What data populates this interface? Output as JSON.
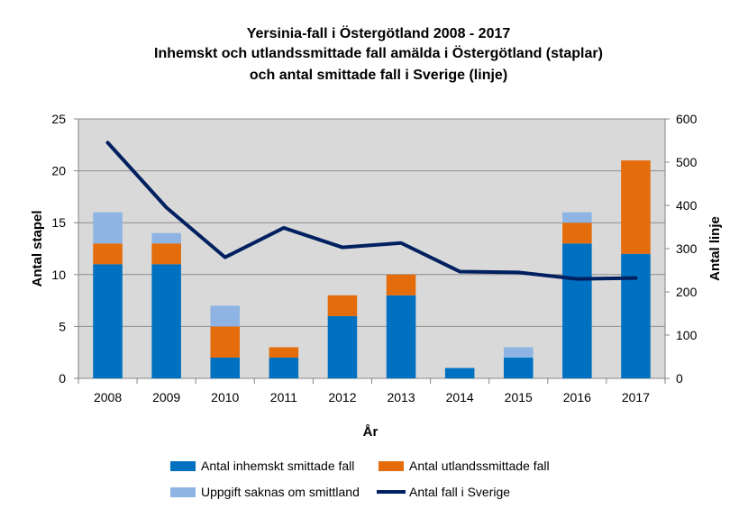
{
  "chart_data": {
    "type": "bar",
    "stacked": true,
    "title": "Yersinia-fall i Östergötland 2008 - 2017",
    "subtitle_lines": [
      "Inhemskt och utlandssmittade fall amälda i Östergötland (staplar)",
      "och antal smittade fall i Sverige (linje)"
    ],
    "xlabel": "År",
    "ylabel": "Antal stapel",
    "y2label": "Antal linje",
    "categories": [
      "2008",
      "2009",
      "2010",
      "2011",
      "2012",
      "2013",
      "2014",
      "2015",
      "2016",
      "2017"
    ],
    "ylim": [
      0,
      25
    ],
    "yticks": [
      "0",
      "5",
      "10",
      "15",
      "20",
      "25"
    ],
    "y2lim": [
      0,
      600
    ],
    "y2ticks": [
      "0",
      "100",
      "200",
      "300",
      "400",
      "500",
      "600"
    ],
    "grid": true,
    "plot_background": "#d9d9d9",
    "legend_position": "bottom",
    "series": [
      {
        "name": "Antal inhemskt smittade fall",
        "type": "bar",
        "axis": "left",
        "color": "#0070c0",
        "values": [
          11,
          11,
          2,
          2,
          6,
          8,
          1,
          2,
          13,
          12
        ]
      },
      {
        "name": "Antal utlandssmittade fall",
        "type": "bar",
        "axis": "left",
        "color": "#e46c0a",
        "values": [
          2,
          2,
          3,
          1,
          2,
          2,
          0,
          0,
          2,
          9
        ]
      },
      {
        "name": "Uppgift saknas om smittland",
        "type": "bar",
        "axis": "left",
        "color": "#8db4e2",
        "values": [
          3,
          1,
          2,
          0,
          0,
          0,
          0,
          1,
          1,
          0
        ]
      },
      {
        "name": "Antal fall i Sverige",
        "type": "line",
        "axis": "right",
        "color": "#002060",
        "values": [
          545,
          395,
          280,
          348,
          303,
          313,
          247,
          245,
          230,
          232
        ]
      }
    ]
  }
}
